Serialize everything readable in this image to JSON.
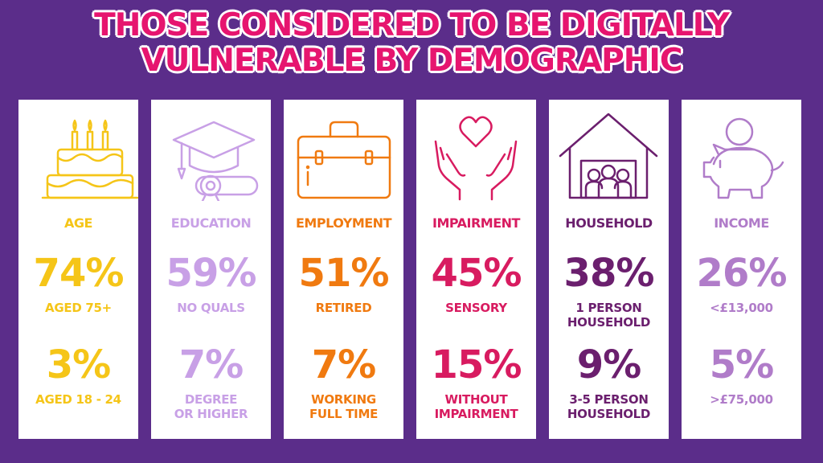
{
  "title": {
    "line1": "THOSE CONSIDERED TO BE DIGITALLY",
    "line2": "VULNERABLE BY DEMOGRAPHIC"
  },
  "colors": {
    "background": "#5b2d8a",
    "title": "#e6156f",
    "age": "#f5c518",
    "education": "#c8a0e6",
    "employment": "#f07a10",
    "impairment": "#d81b60",
    "household": "#6b1f6e",
    "income": "#b07cc9"
  },
  "cards": [
    {
      "category": "AGE",
      "icon": "birthday-cake-icon",
      "stat1": "74%",
      "label1": "AGED 75+",
      "stat2": "3%",
      "label2": "AGED 18 - 24"
    },
    {
      "category": "EDUCATION",
      "icon": "graduation-cap-icon",
      "stat1": "59%",
      "label1": "NO QUALS",
      "stat2": "7%",
      "label2": "DEGREE\nOR HIGHER"
    },
    {
      "category": "EMPLOYMENT",
      "icon": "briefcase-icon",
      "stat1": "51%",
      "label1": "RETIRED",
      "stat2": "7%",
      "label2": "WORKING\nFULL TIME"
    },
    {
      "category": "IMPAIRMENT",
      "icon": "hands-heart-icon",
      "stat1": "45%",
      "label1": "SENSORY",
      "stat2": "15%",
      "label2": "WITHOUT\nIMPAIRMENT"
    },
    {
      "category": "HOUSEHOLD",
      "icon": "house-family-icon",
      "stat1": "38%",
      "label1": "1 PERSON\nHOUSEHOLD",
      "stat2": "9%",
      "label2": "3-5 PERSON\nHOUSEHOLD"
    },
    {
      "category": "INCOME",
      "icon": "piggy-bank-icon",
      "stat1": "26%",
      "label1": "<£13,000",
      "stat2": "5%",
      "label2": ">£75,000"
    }
  ],
  "icon_text": {
    "pound_sign": "£"
  }
}
